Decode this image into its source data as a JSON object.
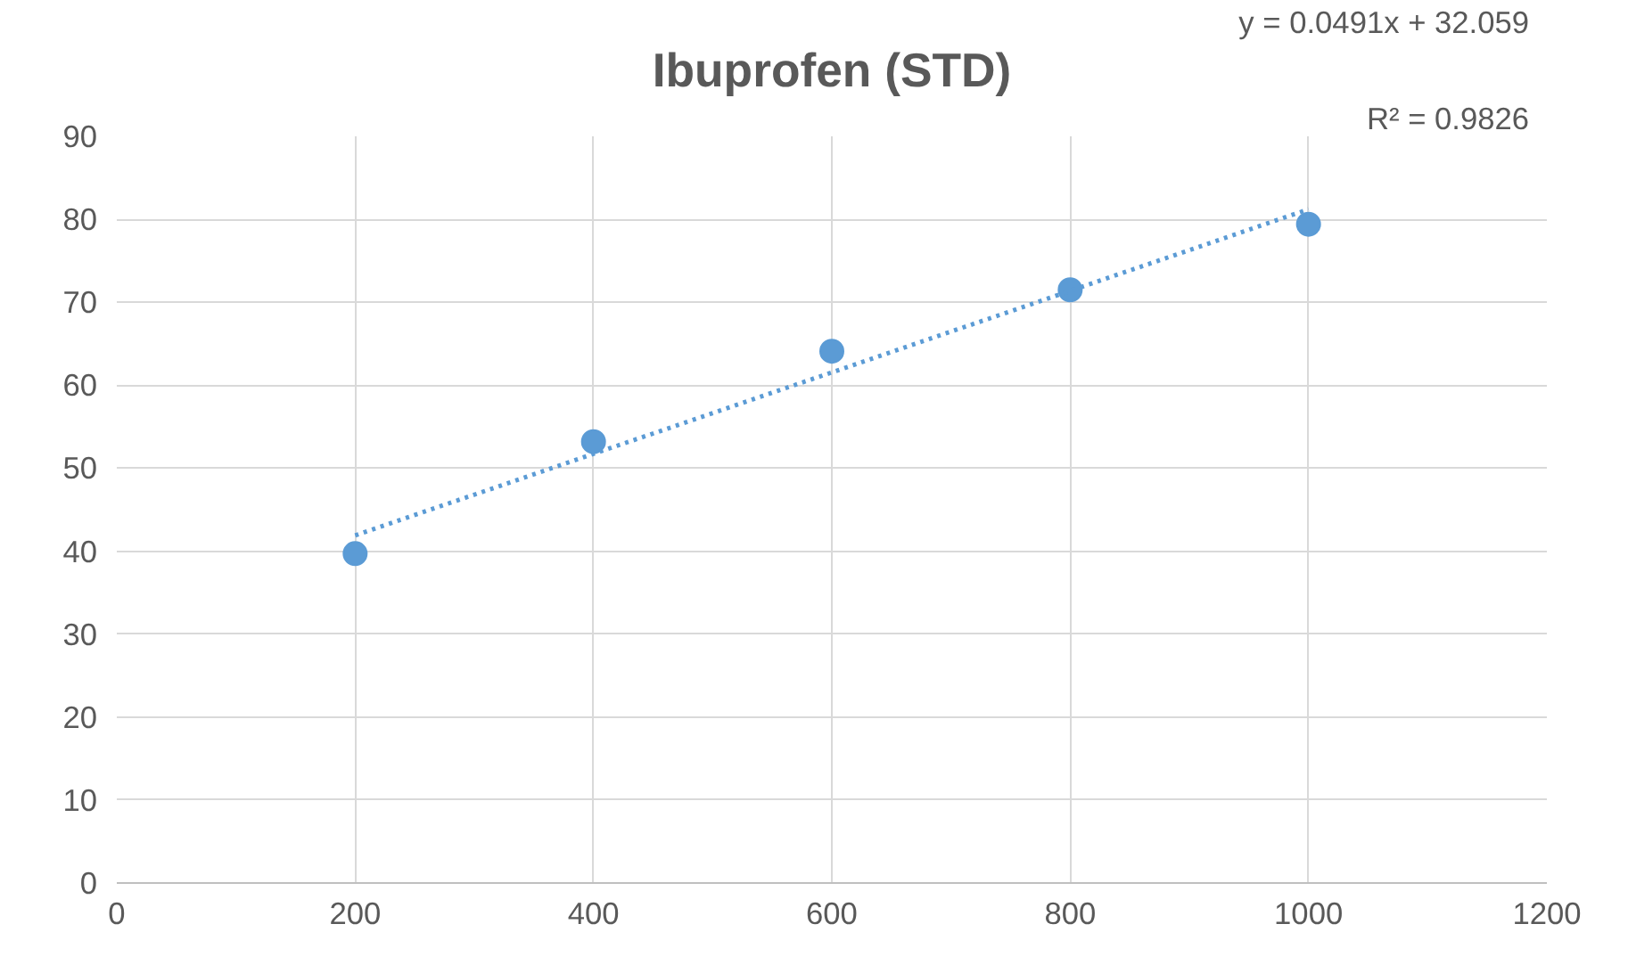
{
  "chart_data": {
    "type": "scatter",
    "title": "Ibuprofen (STD)",
    "xlim": [
      0,
      1200
    ],
    "xticks": [
      0,
      200,
      400,
      600,
      800,
      1000,
      1200
    ],
    "ylim": [
      0,
      90
    ],
    "yticks": [
      0,
      10,
      20,
      30,
      40,
      50,
      60,
      70,
      80,
      90
    ],
    "grid": true,
    "marker": "circle",
    "series": [
      {
        "color": "#5b9bd5",
        "x": [
          200,
          400,
          600,
          800,
          1000
        ],
        "values": [
          39.7,
          53.2,
          64.1,
          71.5,
          79.4
        ]
      },
      {
        "type": "line",
        "color": "#5b9bd5",
        "line_style": "dotted",
        "marker": "none",
        "x": [
          200,
          1000
        ],
        "values": [
          41.9,
          81.2
        ]
      }
    ],
    "annotations": [
      "y = 0.0491x + 32.059",
      "R² = 0.9826"
    ]
  }
}
